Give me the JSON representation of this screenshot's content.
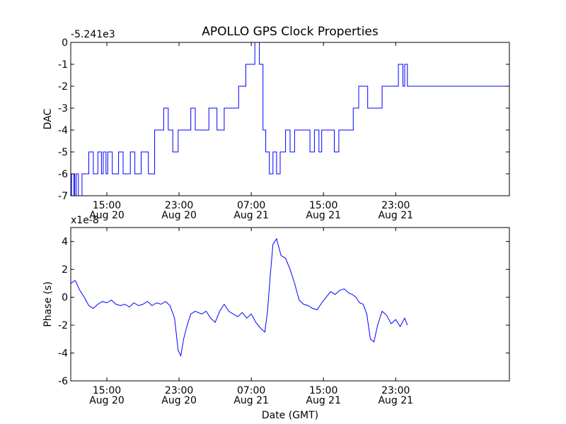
{
  "figure": {
    "title": "APOLLO GPS Clock Properties",
    "xlabel": "Date (GMT)"
  },
  "chart_data": [
    {
      "type": "line",
      "ylabel": "DAC",
      "offset_text": "-5.241e3",
      "ylim": [
        -7,
        0
      ],
      "xlim": [
        11.0,
        59.6
      ],
      "y_ticks": [
        0,
        -1,
        -2,
        -3,
        -4,
        -5,
        -6,
        -7
      ],
      "y_tick_labels": [
        "0",
        "-1",
        "-2",
        "-3",
        "-4",
        "-5",
        "-6",
        "-7"
      ],
      "x_ticks": [
        {
          "hours": 15,
          "time": "15:00",
          "date": "Aug 20"
        },
        {
          "hours": 23,
          "time": "23:00",
          "date": "Aug 20"
        },
        {
          "hours": 31,
          "time": "07:00",
          "date": "Aug 21"
        },
        {
          "hours": 39,
          "time": "15:00",
          "date": "Aug 21"
        },
        {
          "hours": 47,
          "time": "23:00",
          "date": "Aug 21"
        }
      ],
      "color": "#0000ff",
      "series": [
        {
          "name": "DAC",
          "x": [
            11.0,
            11.1,
            11.35,
            11.45,
            11.6,
            11.85,
            12.25,
            12.55,
            13.0,
            13.5,
            14.0,
            14.4,
            14.6,
            14.9,
            15.1,
            15.6,
            16.3,
            16.8,
            17.6,
            18.1,
            18.8,
            19.6,
            20.3,
            21.3,
            21.8,
            22.3,
            22.9,
            23.3,
            23.8,
            24.3,
            24.8,
            26.3,
            27.2,
            28.0,
            28.8,
            29.6,
            30.1,
            30.4,
            31.0,
            31.4,
            31.9,
            32.3,
            32.6,
            32.75,
            33.0,
            33.4,
            33.8,
            34.2,
            34.8,
            35.3,
            35.8,
            36.3,
            36.8,
            37.5,
            38.0,
            38.5,
            38.8,
            39.5,
            40.2,
            40.7,
            41.3,
            42.3,
            42.9,
            43.9,
            44.9,
            45.5,
            46.2,
            46.7,
            47.3,
            47.8,
            48.0,
            48.3
          ],
          "y": [
            -6,
            -7,
            -6,
            -7,
            -6,
            -7,
            -6,
            -6,
            -5,
            -6,
            -5,
            -6,
            -5,
            -6,
            -5,
            -6,
            -5,
            -6,
            -5,
            -6,
            -5,
            -6,
            -4,
            -3,
            -4,
            -5,
            -4,
            -4,
            -4,
            -3,
            -4,
            -3,
            -4,
            -3,
            -3,
            -2,
            -2,
            -1,
            -1,
            0,
            -1,
            -4,
            -5,
            -5,
            -6,
            -5,
            -6,
            -5,
            -4,
            -5,
            -4,
            -4,
            -4,
            -5,
            -4,
            -5,
            -4,
            -4,
            -5,
            -4,
            -4,
            -3,
            -2,
            -3,
            -3,
            -2,
            -2,
            -2,
            -1,
            -2,
            -1,
            -2
          ]
        }
      ]
    },
    {
      "type": "line",
      "ylabel": "Phase (s)",
      "offset_text": "x1e-8",
      "ylim": [
        -6,
        5
      ],
      "xlim": [
        11.0,
        59.6
      ],
      "y_ticks": [
        4,
        2,
        0,
        -2,
        -4,
        -6
      ],
      "y_tick_labels": [
        "4",
        "2",
        "0",
        "-2",
        "-4",
        "-6"
      ],
      "x_ticks": [
        {
          "hours": 15,
          "time": "15:00",
          "date": "Aug 20"
        },
        {
          "hours": 23,
          "time": "23:00",
          "date": "Aug 20"
        },
        {
          "hours": 31,
          "time": "07:00",
          "date": "Aug 21"
        },
        {
          "hours": 39,
          "time": "15:00",
          "date": "Aug 21"
        },
        {
          "hours": 47,
          "time": "23:00",
          "date": "Aug 21"
        }
      ],
      "color": "#0000ff",
      "series": [
        {
          "name": "Phase",
          "x": [
            11.0,
            11.5,
            12.0,
            12.5,
            13.0,
            13.5,
            14.0,
            14.5,
            15.0,
            15.5,
            16.0,
            16.5,
            17.0,
            17.5,
            18.0,
            18.5,
            19.0,
            19.5,
            20.0,
            20.5,
            21.0,
            21.5,
            22.0,
            22.5,
            22.9,
            23.2,
            23.5,
            23.9,
            24.3,
            24.8,
            25.5,
            26.0,
            26.5,
            27.0,
            27.5,
            28.0,
            28.5,
            29.0,
            29.5,
            30.0,
            30.5,
            31.0,
            31.5,
            32.0,
            32.5,
            32.8,
            33.1,
            33.4,
            33.8,
            34.3,
            34.8,
            35.3,
            35.8,
            36.3,
            36.8,
            37.3,
            37.8,
            38.3,
            38.8,
            39.3,
            39.8,
            40.3,
            40.8,
            41.3,
            41.8,
            42.2,
            42.6,
            43.0,
            43.4,
            43.8,
            44.2,
            44.6,
            45.0,
            45.5,
            46.0,
            46.5,
            47.0,
            47.5,
            48.0,
            48.3
          ],
          "y": [
            1.0,
            1.2,
            0.5,
            0.0,
            -0.6,
            -0.8,
            -0.5,
            -0.3,
            -0.4,
            -0.2,
            -0.5,
            -0.6,
            -0.5,
            -0.7,
            -0.4,
            -0.6,
            -0.5,
            -0.3,
            -0.6,
            -0.4,
            -0.5,
            -0.3,
            -0.6,
            -1.5,
            -3.8,
            -4.2,
            -3.0,
            -2.0,
            -1.2,
            -1.0,
            -1.2,
            -1.0,
            -1.5,
            -1.8,
            -1.0,
            -0.5,
            -1.0,
            -1.2,
            -1.4,
            -1.1,
            -1.5,
            -1.2,
            -1.8,
            -2.2,
            -2.5,
            -1.0,
            1.5,
            3.8,
            4.2,
            3.0,
            2.8,
            2.0,
            1.0,
            -0.2,
            -0.5,
            -0.6,
            -0.8,
            -0.9,
            -0.4,
            0.0,
            0.4,
            0.2,
            0.5,
            0.6,
            0.3,
            0.2,
            0.0,
            -0.4,
            -0.5,
            -1.2,
            -3.0,
            -3.2,
            -2.0,
            -1.0,
            -1.3,
            -1.9,
            -1.6,
            -2.1,
            -1.5,
            -2.0
          ]
        }
      ]
    }
  ]
}
